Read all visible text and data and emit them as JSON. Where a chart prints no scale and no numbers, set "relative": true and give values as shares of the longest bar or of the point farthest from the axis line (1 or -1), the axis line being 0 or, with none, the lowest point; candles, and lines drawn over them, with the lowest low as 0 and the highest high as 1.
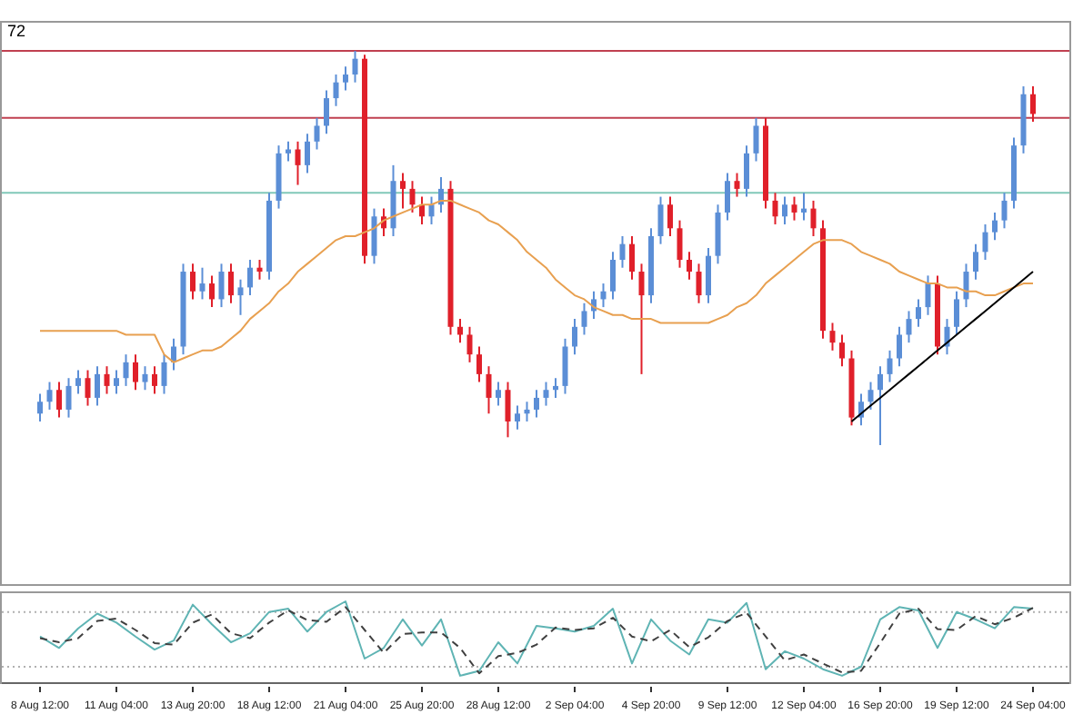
{
  "chart_data": [
    {
      "type": "candlestick",
      "relative": true,
      "annotations": [
        "72"
      ],
      "categories": [
        null,
        null,
        null,
        null,
        null,
        null,
        null,
        null,
        null,
        null,
        null,
        null,
        null,
        null,
        null,
        null,
        null,
        null,
        null,
        null,
        null,
        null,
        null,
        null,
        null,
        null,
        null,
        null,
        null,
        null,
        null,
        null,
        null,
        null,
        null,
        null,
        null,
        null,
        null,
        null,
        null,
        null,
        null,
        null,
        null,
        null,
        null,
        null,
        null,
        null,
        null,
        null,
        null,
        null,
        null,
        null,
        null,
        null,
        null,
        null,
        null,
        null,
        null,
        null,
        null,
        null,
        null,
        null,
        null,
        null,
        null,
        null,
        null,
        null,
        null,
        null,
        null,
        null,
        null,
        null,
        null,
        null,
        null,
        null,
        null,
        null,
        null,
        null,
        null,
        null,
        null,
        null,
        null,
        null,
        null,
        null,
        null,
        null,
        null,
        null,
        null,
        null,
        null,
        null,
        null
      ],
      "ohlc": [
        [
          0.08,
          0.13,
          0.06,
          0.11
        ],
        [
          0.11,
          0.16,
          0.09,
          0.14
        ],
        [
          0.14,
          0.16,
          0.07,
          0.09
        ],
        [
          0.09,
          0.17,
          0.07,
          0.15
        ],
        [
          0.15,
          0.19,
          0.13,
          0.17
        ],
        [
          0.17,
          0.19,
          0.1,
          0.12
        ],
        [
          0.12,
          0.2,
          0.1,
          0.18
        ],
        [
          0.18,
          0.2,
          0.13,
          0.15
        ],
        [
          0.15,
          0.19,
          0.13,
          0.17
        ],
        [
          0.17,
          0.23,
          0.15,
          0.21
        ],
        [
          0.21,
          0.23,
          0.14,
          0.16
        ],
        [
          0.16,
          0.2,
          0.14,
          0.18
        ],
        [
          0.18,
          0.2,
          0.13,
          0.15
        ],
        [
          0.15,
          0.23,
          0.13,
          0.21
        ],
        [
          0.21,
          0.27,
          0.19,
          0.25
        ],
        [
          0.25,
          0.46,
          0.23,
          0.44
        ],
        [
          0.44,
          0.46,
          0.37,
          0.39
        ],
        [
          0.39,
          0.45,
          0.37,
          0.41
        ],
        [
          0.41,
          0.43,
          0.35,
          0.37
        ],
        [
          0.37,
          0.46,
          0.35,
          0.44
        ],
        [
          0.44,
          0.46,
          0.36,
          0.38
        ],
        [
          0.38,
          0.42,
          0.33,
          0.4
        ],
        [
          0.4,
          0.47,
          0.38,
          0.45
        ],
        [
          0.45,
          0.47,
          0.42,
          0.44
        ],
        [
          0.44,
          0.64,
          0.42,
          0.62
        ],
        [
          0.62,
          0.76,
          0.6,
          0.74
        ],
        [
          0.74,
          0.77,
          0.72,
          0.75
        ],
        [
          0.75,
          0.77,
          0.66,
          0.71
        ],
        [
          0.71,
          0.79,
          0.69,
          0.77
        ],
        [
          0.77,
          0.83,
          0.75,
          0.81
        ],
        [
          0.81,
          0.9,
          0.79,
          0.88
        ],
        [
          0.88,
          0.94,
          0.86,
          0.92
        ],
        [
          0.92,
          0.96,
          0.9,
          0.94
        ],
        [
          0.94,
          1,
          0.92,
          0.98
        ],
        [
          0.98,
          0.99,
          0.46,
          0.48
        ],
        [
          0.48,
          0.6,
          0.46,
          0.58
        ],
        [
          0.58,
          0.6,
          0.53,
          0.55
        ],
        [
          0.55,
          0.71,
          0.53,
          0.67
        ],
        [
          0.67,
          0.69,
          0.6,
          0.65
        ],
        [
          0.65,
          0.67,
          0.59,
          0.61
        ],
        [
          0.61,
          0.63,
          0.56,
          0.58
        ],
        [
          0.58,
          0.63,
          0.56,
          0.61
        ],
        [
          0.61,
          0.68,
          0.59,
          0.65
        ],
        [
          0.65,
          0.67,
          0.28,
          0.3
        ],
        [
          0.3,
          0.32,
          0.26,
          0.28
        ],
        [
          0.28,
          0.3,
          0.21,
          0.23
        ],
        [
          0.23,
          0.25,
          0.16,
          0.18
        ],
        [
          0.18,
          0.2,
          0.08,
          0.12
        ],
        [
          0.12,
          0.16,
          0.1,
          0.14
        ],
        [
          0.14,
          0.16,
          0.02,
          0.06
        ],
        [
          0.06,
          0.1,
          0.04,
          0.08
        ],
        [
          0.08,
          0.11,
          0.06,
          0.09
        ],
        [
          0.09,
          0.14,
          0.07,
          0.12
        ],
        [
          0.12,
          0.16,
          0.1,
          0.14
        ],
        [
          0.14,
          0.17,
          0.12,
          0.15
        ],
        [
          0.15,
          0.27,
          0.13,
          0.25
        ],
        [
          0.25,
          0.32,
          0.23,
          0.3
        ],
        [
          0.3,
          0.36,
          0.28,
          0.34
        ],
        [
          0.34,
          0.39,
          0.32,
          0.37
        ],
        [
          0.37,
          0.41,
          0.35,
          0.39
        ],
        [
          0.39,
          0.49,
          0.37,
          0.47
        ],
        [
          0.47,
          0.53,
          0.45,
          0.51
        ],
        [
          0.51,
          0.53,
          0.42,
          0.44
        ],
        [
          0.44,
          0.46,
          0.18,
          0.38
        ],
        [
          0.38,
          0.55,
          0.36,
          0.53
        ],
        [
          0.53,
          0.63,
          0.51,
          0.61
        ],
        [
          0.61,
          0.63,
          0.53,
          0.55
        ],
        [
          0.55,
          0.57,
          0.45,
          0.47
        ],
        [
          0.47,
          0.49,
          0.42,
          0.44
        ],
        [
          0.44,
          0.46,
          0.36,
          0.38
        ],
        [
          0.38,
          0.5,
          0.36,
          0.48
        ],
        [
          0.48,
          0.61,
          0.46,
          0.59
        ],
        [
          0.59,
          0.69,
          0.57,
          0.67
        ],
        [
          0.67,
          0.69,
          0.63,
          0.65
        ],
        [
          0.65,
          0.76,
          0.63,
          0.74
        ],
        [
          0.74,
          0.83,
          0.72,
          0.81
        ],
        [
          0.81,
          0.83,
          0.6,
          0.62
        ],
        [
          0.62,
          0.64,
          0.56,
          0.58
        ],
        [
          0.58,
          0.63,
          0.56,
          0.61
        ],
        [
          0.61,
          0.63,
          0.57,
          0.59
        ],
        [
          0.59,
          0.64,
          0.57,
          0.6
        ],
        [
          0.6,
          0.62,
          0.53,
          0.55
        ],
        [
          0.55,
          0.57,
          0.27,
          0.29
        ],
        [
          0.29,
          0.31,
          0.24,
          0.26
        ],
        [
          0.26,
          0.28,
          0.2,
          0.22
        ],
        [
          0.22,
          0.24,
          0.05,
          0.07
        ],
        [
          0.07,
          0.13,
          0.05,
          0.11
        ],
        [
          0.11,
          0.16,
          0.09,
          0.14
        ],
        [
          0.14,
          0.2,
          0,
          0.18
        ],
        [
          0.18,
          0.24,
          0.16,
          0.22
        ],
        [
          0.22,
          0.3,
          0.2,
          0.28
        ],
        [
          0.28,
          0.34,
          0.26,
          0.32
        ],
        [
          0.32,
          0.37,
          0.3,
          0.35
        ],
        [
          0.35,
          0.43,
          0.33,
          0.41
        ],
        [
          0.41,
          0.43,
          0.23,
          0.25
        ],
        [
          0.25,
          0.32,
          0.23,
          0.3
        ],
        [
          0.3,
          0.39,
          0.28,
          0.37
        ],
        [
          0.37,
          0.46,
          0.35,
          0.44
        ],
        [
          0.44,
          0.51,
          0.42,
          0.49
        ],
        [
          0.49,
          0.56,
          0.47,
          0.54
        ],
        [
          0.54,
          0.59,
          0.52,
          0.57
        ],
        [
          0.57,
          0.64,
          0.55,
          0.62
        ],
        [
          0.62,
          0.78,
          0.6,
          0.76
        ],
        [
          0.76,
          0.91,
          0.74,
          0.89
        ],
        [
          0.89,
          0.91,
          0.82,
          0.84
        ]
      ],
      "series": [
        {
          "type": "line",
          "color": "#e8a050",
          "values": [
            0.29,
            0.29,
            0.29,
            0.29,
            0.29,
            0.29,
            0.29,
            0.29,
            0.29,
            0.28,
            0.28,
            0.28,
            0.28,
            0.23,
            0.21,
            0.22,
            0.23,
            0.24,
            0.24,
            0.25,
            0.27,
            0.29,
            0.32,
            0.34,
            0.36,
            0.39,
            0.41,
            0.44,
            0.46,
            0.48,
            0.5,
            0.52,
            0.53,
            0.53,
            0.54,
            0.55,
            0.57,
            0.58,
            0.59,
            0.6,
            0.61,
            0.61,
            0.62,
            0.62,
            0.61,
            0.6,
            0.59,
            0.57,
            0.56,
            0.54,
            0.52,
            0.49,
            0.47,
            0.45,
            0.42,
            0.4,
            0.38,
            0.37,
            0.35,
            0.34,
            0.33,
            0.33,
            0.32,
            0.32,
            0.32,
            0.31,
            0.31,
            0.31,
            0.31,
            0.31,
            0.31,
            0.32,
            0.33,
            0.35,
            0.36,
            0.38,
            0.41,
            0.43,
            0.45,
            0.47,
            0.49,
            0.51,
            0.52,
            0.52,
            0.52,
            0.51,
            0.49,
            0.48,
            0.47,
            0.46,
            0.44,
            0.43,
            0.42,
            0.41,
            0.41,
            0.4,
            0.4,
            0.39,
            0.39,
            0.38,
            0.38,
            0.39,
            0.4,
            0.41,
            0.41
          ]
        },
        {
          "type": "line",
          "color": "#000000",
          "values": [
            null,
            null,
            null,
            null,
            null,
            null,
            null,
            null,
            null,
            null,
            null,
            null,
            null,
            null,
            null,
            null,
            null,
            null,
            null,
            null,
            null,
            null,
            null,
            null,
            null,
            null,
            null,
            null,
            null,
            null,
            null,
            null,
            null,
            null,
            null,
            null,
            null,
            null,
            null,
            null,
            null,
            null,
            null,
            null,
            null,
            null,
            null,
            null,
            null,
            null,
            null,
            null,
            null,
            null,
            null,
            null,
            null,
            null,
            null,
            null,
            null,
            null,
            null,
            null,
            null,
            null,
            null,
            null,
            null,
            null,
            null,
            null,
            null,
            null,
            null,
            null,
            null,
            null,
            null,
            null,
            null,
            null,
            null,
            null,
            null,
            0.06,
            0.08,
            0.1,
            0.12,
            0.14,
            0.16,
            0.18,
            0.2,
            0.22,
            0.24,
            0.26,
            0.28,
            0.3,
            0.32,
            0.34,
            0.36,
            0.38,
            0.4,
            0.42,
            0.44
          ]
        }
      ],
      "ref_lines": [
        {
          "axis": "y",
          "value": 1,
          "color": "#c04050"
        },
        {
          "axis": "y",
          "value": 0.83,
          "color": "#c04050"
        },
        {
          "axis": "y",
          "value": 0.64,
          "color": "#80c8b8"
        }
      ]
    },
    {
      "type": "line",
      "relative": true,
      "grid": false,
      "categories": [
        "8 Aug 12:00",
        null,
        null,
        null,
        "11 Aug 04:00",
        null,
        null,
        null,
        "13 Aug 20:00",
        null,
        null,
        null,
        "18 Aug 12:00",
        null,
        null,
        null,
        "21 Aug 04:00",
        null,
        null,
        null,
        "25 Aug 20:00",
        null,
        null,
        null,
        "28 Aug 12:00",
        null,
        null,
        null,
        "2 Sep 04:00",
        null,
        null,
        null,
        "4 Sep 20:00",
        null,
        null,
        null,
        "9 Sep 12:00",
        null,
        null,
        null,
        "12 Sep 04:00",
        null,
        null,
        null,
        "16 Sep 20:00",
        null,
        null,
        null,
        "19 Sep 12:00",
        null,
        null,
        null,
        "24 Sep 04:00"
      ],
      "series": [
        {
          "color": "#5fb4b4",
          "line_style": "solid",
          "values": [
            0.57,
            0.43,
            0.67,
            0.85,
            0.74,
            0.57,
            0.41,
            0.52,
            0.96,
            0.72,
            0.5,
            0.61,
            0.87,
            0.91,
            0.63,
            0.87,
            1,
            0.3,
            0.43,
            0.78,
            0.46,
            0.78,
            0.09,
            0.15,
            0.5,
            0.24,
            0.7,
            0.67,
            0.63,
            0.7,
            0.91,
            0.24,
            0.78,
            0.52,
            0.35,
            0.78,
            0.74,
            0.98,
            0.17,
            0.39,
            0.3,
            0.17,
            0.09,
            0.2,
            0.78,
            0.93,
            0.89,
            0.43,
            0.87,
            0.78,
            0.67,
            0.93,
            0.91
          ]
        },
        {
          "color": "#404040",
          "line_style": "dashed",
          "values": [
            0.55,
            0.5,
            0.55,
            0.76,
            0.79,
            0.65,
            0.49,
            0.47,
            0.74,
            0.84,
            0.61,
            0.55,
            0.74,
            0.89,
            0.77,
            0.75,
            0.93,
            0.65,
            0.37,
            0.6,
            0.62,
            0.62,
            0.43,
            0.12,
            0.33,
            0.37,
            0.47,
            0.68,
            0.65,
            0.67,
            0.8,
            0.57,
            0.51,
            0.65,
            0.44,
            0.56,
            0.76,
            0.86,
            0.57,
            0.28,
            0.35,
            0.24,
            0.13,
            0.15,
            0.49,
            0.85,
            0.91,
            0.66,
            0.65,
            0.82,
            0.72,
            0.8,
            0.92
          ]
        }
      ],
      "ref_lines": [
        {
          "axis": "y",
          "value": 0.87,
          "color": "#b0b0b0",
          "line_style": "dotted"
        },
        {
          "axis": "y",
          "value": 0.2,
          "color": "#b0b0b0",
          "line_style": "dotted"
        }
      ]
    }
  ]
}
